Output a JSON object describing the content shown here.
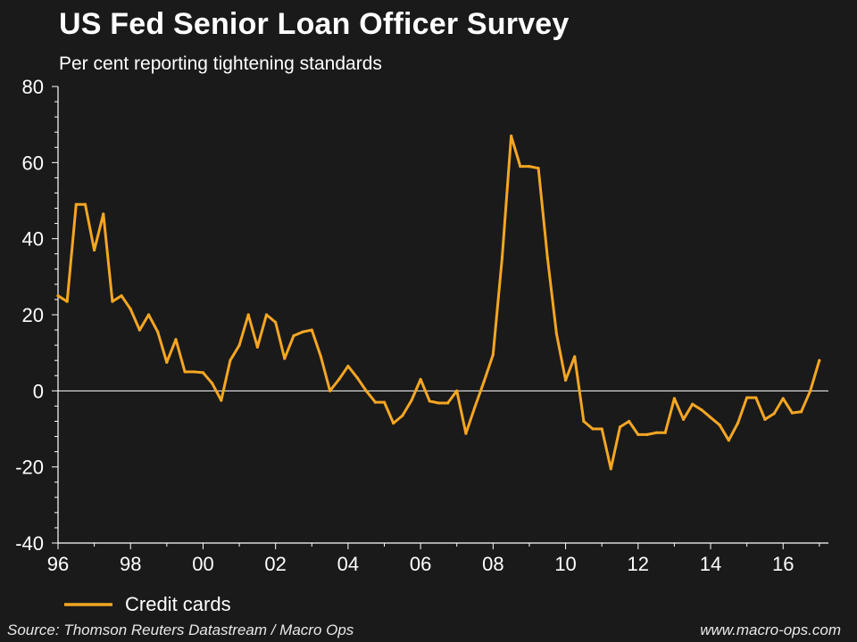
{
  "chart_data": {
    "type": "line",
    "title": "US Fed Senior Loan Officer Survey",
    "subtitle": "Per cent reporting tightening standards",
    "xlabel": "",
    "ylabel": "",
    "ylim": [
      -40,
      80
    ],
    "yticks": [
      -40,
      -20,
      0,
      20,
      40,
      60,
      80
    ],
    "xlim": [
      1996,
      2017.25
    ],
    "xticks": [
      {
        "value": 1996,
        "label": "96"
      },
      {
        "value": 1998,
        "label": "98"
      },
      {
        "value": 2000,
        "label": "00"
      },
      {
        "value": 2002,
        "label": "02"
      },
      {
        "value": 2004,
        "label": "04"
      },
      {
        "value": 2006,
        "label": "06"
      },
      {
        "value": 2008,
        "label": "08"
      },
      {
        "value": 2010,
        "label": "10"
      },
      {
        "value": 2012,
        "label": "12"
      },
      {
        "value": 2014,
        "label": "14"
      },
      {
        "value": 2016,
        "label": "16"
      }
    ],
    "zero_line": true,
    "legend_position": "bottom-left",
    "series": [
      {
        "name": "Credit cards",
        "color": "#f5a623",
        "x": [
          1996.0,
          1996.25,
          1996.5,
          1996.75,
          1997.0,
          1997.25,
          1997.5,
          1997.75,
          1998.0,
          1998.25,
          1998.5,
          1998.75,
          1999.0,
          1999.25,
          1999.5,
          1999.75,
          2000.0,
          2000.25,
          2000.5,
          2000.75,
          2001.0,
          2001.25,
          2001.5,
          2001.75,
          2002.0,
          2002.25,
          2002.5,
          2002.75,
          2003.0,
          2003.25,
          2003.5,
          2003.75,
          2004.0,
          2004.25,
          2004.5,
          2004.75,
          2005.0,
          2005.25,
          2005.5,
          2005.75,
          2006.0,
          2006.25,
          2006.5,
          2006.75,
          2007.0,
          2007.25,
          2007.5,
          2007.75,
          2008.0,
          2008.25,
          2008.5,
          2008.75,
          2009.0,
          2009.25,
          2009.5,
          2009.75,
          2010.0,
          2010.25,
          2010.5,
          2010.75,
          2011.0,
          2011.25,
          2011.5,
          2011.75,
          2012.0,
          2012.25,
          2012.5,
          2012.75,
          2013.0,
          2013.25,
          2013.5,
          2013.75,
          2014.0,
          2014.25,
          2014.5,
          2014.75,
          2015.0,
          2015.25,
          2015.5,
          2015.75,
          2016.0,
          2016.25,
          2016.5,
          2016.75,
          2017.0
        ],
        "values": [
          25,
          23.5,
          49,
          49,
          37,
          46.5,
          23.5,
          25,
          21.5,
          16,
          20,
          15.5,
          7.5,
          13.5,
          5,
          5,
          4.8,
          2,
          -2.5,
          8,
          12,
          20,
          11.5,
          20,
          18,
          8.5,
          14.5,
          15.5,
          16,
          9,
          0,
          3,
          6.5,
          3.5,
          0,
          -3,
          -3,
          -8.5,
          -6.5,
          -2.5,
          3,
          -2.7,
          -3.2,
          -3.2,
          0,
          -11.2,
          -4.2,
          2.5,
          9.5,
          35,
          67,
          59,
          59,
          58.5,
          35,
          15,
          2.8,
          9,
          -8,
          -10,
          -10,
          -20.5,
          -9.5,
          -8,
          -11.5,
          -11.5,
          -11,
          -11,
          -2,
          -7.5,
          -3.5,
          -5,
          -7,
          -9,
          -13,
          -8.5,
          -1.8,
          -1.8,
          -7.5,
          -6,
          -2,
          -5.8,
          -5.5,
          0,
          8
        ]
      }
    ]
  },
  "footer": {
    "source": "Source: Thomson Reuters Datastream / Macro Ops",
    "website": "www.macro-ops.com"
  }
}
